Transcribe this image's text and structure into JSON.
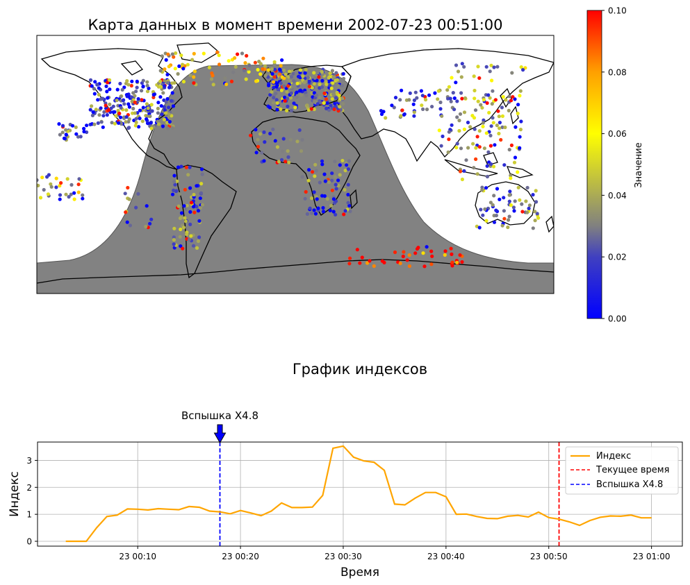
{
  "map_title": "Карта данных в момент времени 2002-07-23 00:51:00",
  "colorbar": {
    "label": "Значение",
    "ticks": [
      "0.00",
      "0.02",
      "0.04",
      "0.06",
      "0.08",
      "0.10"
    ],
    "range": [
      0,
      0.1
    ],
    "colors": [
      "#0000ff",
      "#808080",
      "#ffff00",
      "#ff0000"
    ]
  },
  "map": {
    "night_color": "#808080",
    "coast_color": "#000000"
  },
  "chart_data": [
    {
      "type": "line",
      "title": "График индексов",
      "xlabel": "Время",
      "ylabel": "Индекс",
      "x_ticks": [
        "23 00:10",
        "23 00:20",
        "23 00:30",
        "23 00:40",
        "23 00:50",
        "23 01:00"
      ],
      "y_ticks": [
        "0",
        "1",
        "2",
        "3"
      ],
      "xlim": [
        "00:00:15",
        "01:03:00"
      ],
      "ylim": [
        -0.18,
        3.68
      ],
      "grid": true,
      "legend_position": "top-right",
      "series": [
        {
          "name": "Индекс",
          "color": "#ffa500",
          "x": [
            "00:03",
            "00:04",
            "00:05",
            "00:06",
            "00:07",
            "00:08",
            "00:09",
            "00:10",
            "00:11",
            "00:12",
            "00:13",
            "00:14",
            "00:15",
            "00:16",
            "00:17",
            "00:18",
            "00:19",
            "00:20",
            "00:21",
            "00:22",
            "00:23",
            "00:24",
            "00:25",
            "00:26",
            "00:27",
            "00:28",
            "00:29",
            "00:30",
            "00:31",
            "00:32",
            "00:33",
            "00:34",
            "00:35",
            "00:36",
            "00:37",
            "00:38",
            "00:39",
            "00:40",
            "00:41",
            "00:42",
            "00:43",
            "00:44",
            "00:45",
            "00:46",
            "00:47",
            "00:48",
            "00:49",
            "00:50",
            "00:51",
            "00:52",
            "00:53",
            "00:54",
            "00:55",
            "00:56",
            "00:57",
            "00:58",
            "00:59",
            "01:00",
            "01:01"
          ],
          "values": [
            0.0,
            0.0,
            0.0,
            0.5,
            0.92,
            0.97,
            1.2,
            1.19,
            1.16,
            1.21,
            1.19,
            1.17,
            1.29,
            1.26,
            1.12,
            1.09,
            1.02,
            1.14,
            1.05,
            0.95,
            1.12,
            1.42,
            1.25,
            1.25,
            1.27,
            1.7,
            3.45,
            3.53,
            3.12,
            2.98,
            2.93,
            2.63,
            1.38,
            1.35,
            1.6,
            1.81,
            1.81,
            1.65,
            1.0,
            1.01,
            0.92,
            0.85,
            0.84,
            0.93,
            0.96,
            0.9,
            1.08,
            0.88,
            0.82,
            0.72,
            0.59,
            0.77,
            0.89,
            0.94,
            0.93,
            0.97,
            0.87,
            0.87,
            null
          ]
        }
      ],
      "markers": [
        {
          "name": "Текущее время",
          "x": "00:51:00",
          "color": "#ff0000",
          "style": "dashed"
        },
        {
          "name": "Вспышка X4.8",
          "x": "00:18:00",
          "color": "#0000ff",
          "style": "dashed"
        }
      ],
      "annotation": {
        "text": "Вспышка X4.8",
        "x": "00:18:00",
        "arrow_color": "#0000ff"
      }
    }
  ]
}
